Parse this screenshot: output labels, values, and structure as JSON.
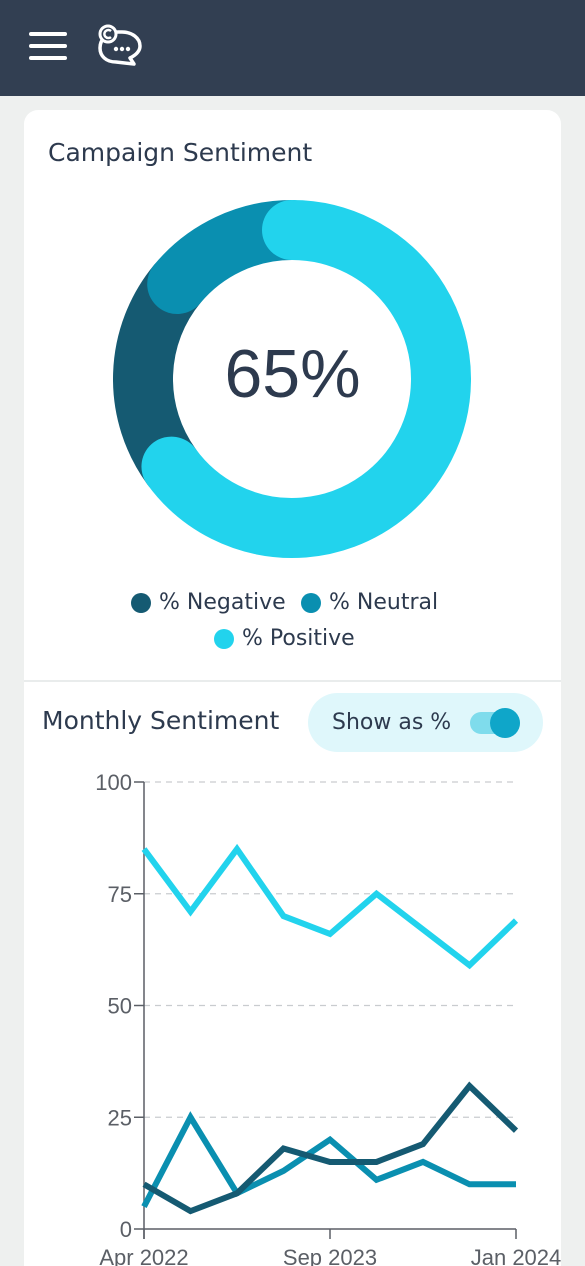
{
  "header": {
    "menu_icon": "hamburger-menu-icon",
    "logo_icon": "chat-bubble-logo-icon"
  },
  "colors": {
    "header_bg": "#323f52",
    "negative": "#155a72",
    "neutral": "#0a8fb0",
    "positive": "#22d3ed"
  },
  "sentiment_card": {
    "title": "Campaign Sentiment",
    "center_value": "65%",
    "legend": [
      {
        "label": "% Negative",
        "color": "#155a72"
      },
      {
        "label": "% Neutral",
        "color": "#0a8fb0"
      },
      {
        "label": "% Positive",
        "color": "#22d3ed"
      }
    ]
  },
  "monthly": {
    "title": "Monthly Sentiment",
    "toggle_label": "Show as %",
    "toggle_on": true
  },
  "chart_data": [
    {
      "type": "pie",
      "categories": [
        "% Negative",
        "% Neutral",
        "% Positive"
      ],
      "values": [
        21,
        14,
        65
      ],
      "center_label": "65%"
    },
    {
      "type": "line",
      "x": [
        "Apr 2022",
        "",
        "",
        "",
        "Sep 2023",
        "",
        "",
        "",
        "Jan 2024"
      ],
      "x_tick_labels": [
        "Apr 2022",
        "Sep 2023",
        "Jan 2024"
      ],
      "ylim": [
        0,
        100
      ],
      "y_ticks": [
        0,
        25,
        50,
        75,
        100
      ],
      "grid": true,
      "series": [
        {
          "name": "% Positive",
          "color": "#22d3ed",
          "values": [
            85,
            71,
            85,
            70,
            66,
            75,
            67,
            59,
            69
          ]
        },
        {
          "name": "% Neutral",
          "color": "#0a8fb0",
          "values": [
            5,
            25,
            8,
            13,
            20,
            11,
            15,
            10,
            10
          ]
        },
        {
          "name": "% Negative",
          "color": "#155a72",
          "values": [
            10,
            4,
            8,
            18,
            15,
            15,
            19,
            32,
            22
          ]
        }
      ]
    }
  ]
}
